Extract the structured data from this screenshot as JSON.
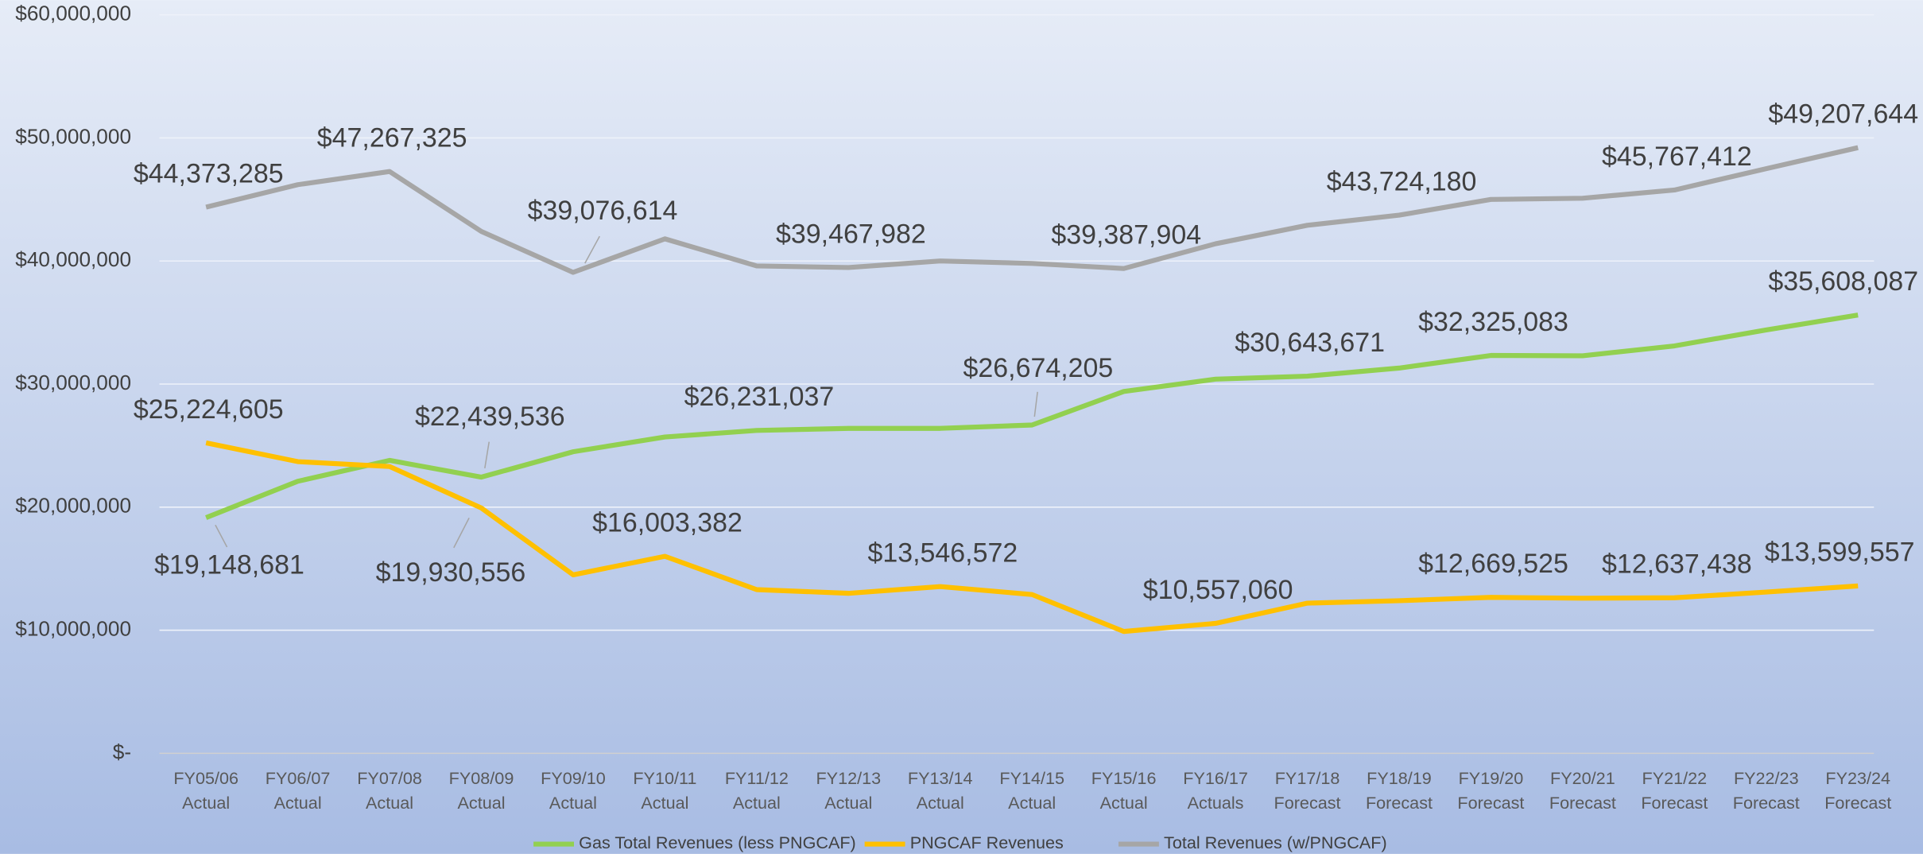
{
  "chart_data": {
    "type": "line",
    "categories": [
      "FY05/06 Actual",
      "FY06/07 Actual",
      "FY07/08 Actual",
      "FY08/09 Actual",
      "FY09/10 Actual",
      "FY10/11 Actual",
      "FY11/12 Actual",
      "FY12/13 Actual",
      "FY13/14 Actual",
      "FY14/15 Actual",
      "FY15/16 Actual",
      "FY16/17 Actuals",
      "FY17/18 Forecast",
      "FY18/19 Forecast",
      "FY19/20 Forecast",
      "FY20/21 Forecast",
      "FY21/22 Forecast",
      "FY22/23 Forecast",
      "FY23/24 Forecast"
    ],
    "series": [
      {
        "name": "Gas Total Revenues (less PNGCAF)",
        "color": "#92d050",
        "values": [
          19148681,
          22100000,
          23800000,
          22439536,
          24500000,
          25700000,
          26231037,
          26400000,
          26400000,
          26674205,
          29400000,
          30400000,
          30643671,
          31300000,
          32325083,
          32300000,
          33100000,
          34400000,
          35608087
        ],
        "value_labels": [
          "$19,148,681",
          null,
          null,
          "$22,439,536",
          null,
          null,
          "$26,231,037",
          null,
          null,
          "$26,674,205",
          null,
          null,
          "$30,643,671",
          null,
          "$32,325,083",
          null,
          null,
          null,
          "$35,608,087"
        ]
      },
      {
        "name": "PNGCAF Revenues",
        "color": "#ffc000",
        "values": [
          25224605,
          23700000,
          23300000,
          19930556,
          14500000,
          16003382,
          13300000,
          13000000,
          13546572,
          12900000,
          9900000,
          10557060,
          12200000,
          12400000,
          12669525,
          12600000,
          12637438,
          13100000,
          13599557
        ],
        "value_labels": [
          "$25,224,605",
          null,
          null,
          "$19,930,556",
          null,
          "$16,003,382",
          null,
          null,
          "$13,546,572",
          null,
          null,
          "$10,557,060",
          null,
          null,
          "$12,669,525",
          null,
          "$12,637,438",
          null,
          "$13,599,557"
        ]
      },
      {
        "name": "Total Revenues (w/PNGCAF)",
        "color": "#a6a6a6",
        "values": [
          44373285,
          46200000,
          47267325,
          42400000,
          39076614,
          41800000,
          39600000,
          39467982,
          40000000,
          39800000,
          39387904,
          41400000,
          42900000,
          43724180,
          45000000,
          45100000,
          45767412,
          47500000,
          49207644
        ],
        "value_labels": [
          "$44,373,285",
          null,
          "$47,267,325",
          null,
          "$39,076,614",
          null,
          null,
          "$39,467,982",
          null,
          null,
          "$39,387,904",
          null,
          null,
          "$43,724,180",
          null,
          null,
          "$45,767,412",
          null,
          "$49,207,644"
        ]
      }
    ],
    "ylim": [
      0,
      60000000
    ],
    "yticks": [
      {
        "value": 0,
        "label": "$-"
      },
      {
        "value": 10000000,
        "label": "$10,000,000"
      },
      {
        "value": 20000000,
        "label": "$20,000,000"
      },
      {
        "value": 30000000,
        "label": "$30,000,000"
      },
      {
        "value": 40000000,
        "label": "$40,000,000"
      },
      {
        "value": 50000000,
        "label": "$50,000,000"
      },
      {
        "value": 60000000,
        "label": "$60,000,000"
      }
    ],
    "grid": true,
    "legend": "bottom"
  }
}
